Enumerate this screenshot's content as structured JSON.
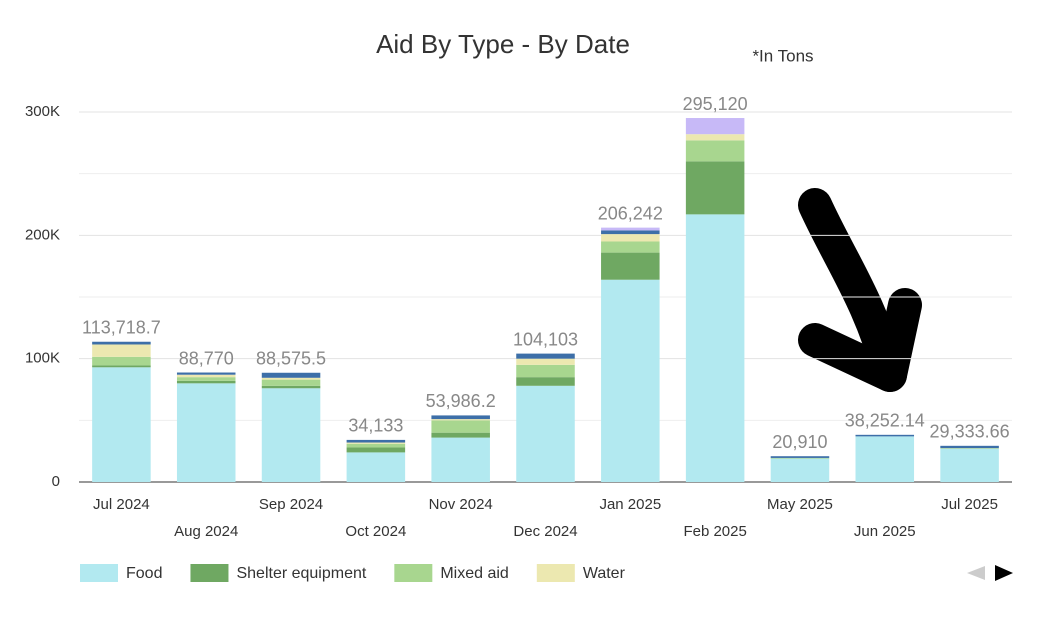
{
  "chart_data": {
    "type": "stacked_bar",
    "title": "Aid By Type - By Date",
    "annotation": "*In Tons",
    "categories": [
      "Jul 2024",
      "Aug 2024",
      "Sep 2024",
      "Oct 2024",
      "Nov 2024",
      "Dec 2024",
      "Jan 2025",
      "Feb 2025",
      "May 2025",
      "Jun 2025",
      "Jul 2025"
    ],
    "series": [
      {
        "name": "Food",
        "color": "#b2e9f0",
        "values": [
          93000,
          80000,
          76000,
          24000,
          36000,
          78000,
          164000,
          217000,
          19000,
          37000,
          27000
        ]
      },
      {
        "name": "Shelter equipment",
        "color": "#6fa862",
        "values": [
          1500,
          2000,
          2000,
          4000,
          4000,
          7000,
          22000,
          43000,
          0,
          0,
          0
        ]
      },
      {
        "name": "Mixed aid",
        "color": "#a8d68f",
        "values": [
          7000,
          3000,
          5000,
          3000,
          10000,
          10000,
          9000,
          17000,
          500,
          0,
          500
        ]
      },
      {
        "name": "Water",
        "color": "#ece8b0",
        "values": [
          10000,
          2000,
          1500,
          1000,
          1000,
          5000,
          6000,
          5000,
          0,
          0,
          0
        ]
      },
      {
        "color": "#3d6fa8",
        "values": [
          2218.7,
          1770,
          4075.5,
          2133,
          2986.2,
          4103,
          3000,
          0,
          1410,
          1252.14,
          1833.66
        ]
      },
      {
        "color": "#c7b9f7",
        "values": [
          0,
          0,
          0,
          0,
          0,
          0,
          2242,
          13120,
          0,
          0,
          0
        ]
      }
    ],
    "totals": [
      113718.7,
      88770,
      88575.5,
      34133,
      53986.2,
      104103,
      206242,
      295120,
      20910,
      38252.14,
      29333.66
    ],
    "total_labels": [
      "113,718.7",
      "88,770",
      "88,575.5",
      "34,133",
      "53,986.2",
      "104,103",
      "206,242",
      "295,120",
      "20,910",
      "38,252.14",
      "29,333.66"
    ],
    "ylim": [
      0,
      300000
    ],
    "yticks": [
      0,
      {
        "value": 100000,
        "label": "100K"
      },
      {
        "value": 200000,
        "label": "200K"
      },
      {
        "value": 300000,
        "label": "300K"
      }
    ],
    "minor_grid": [
      50000,
      150000,
      250000
    ],
    "grid": true
  }
}
